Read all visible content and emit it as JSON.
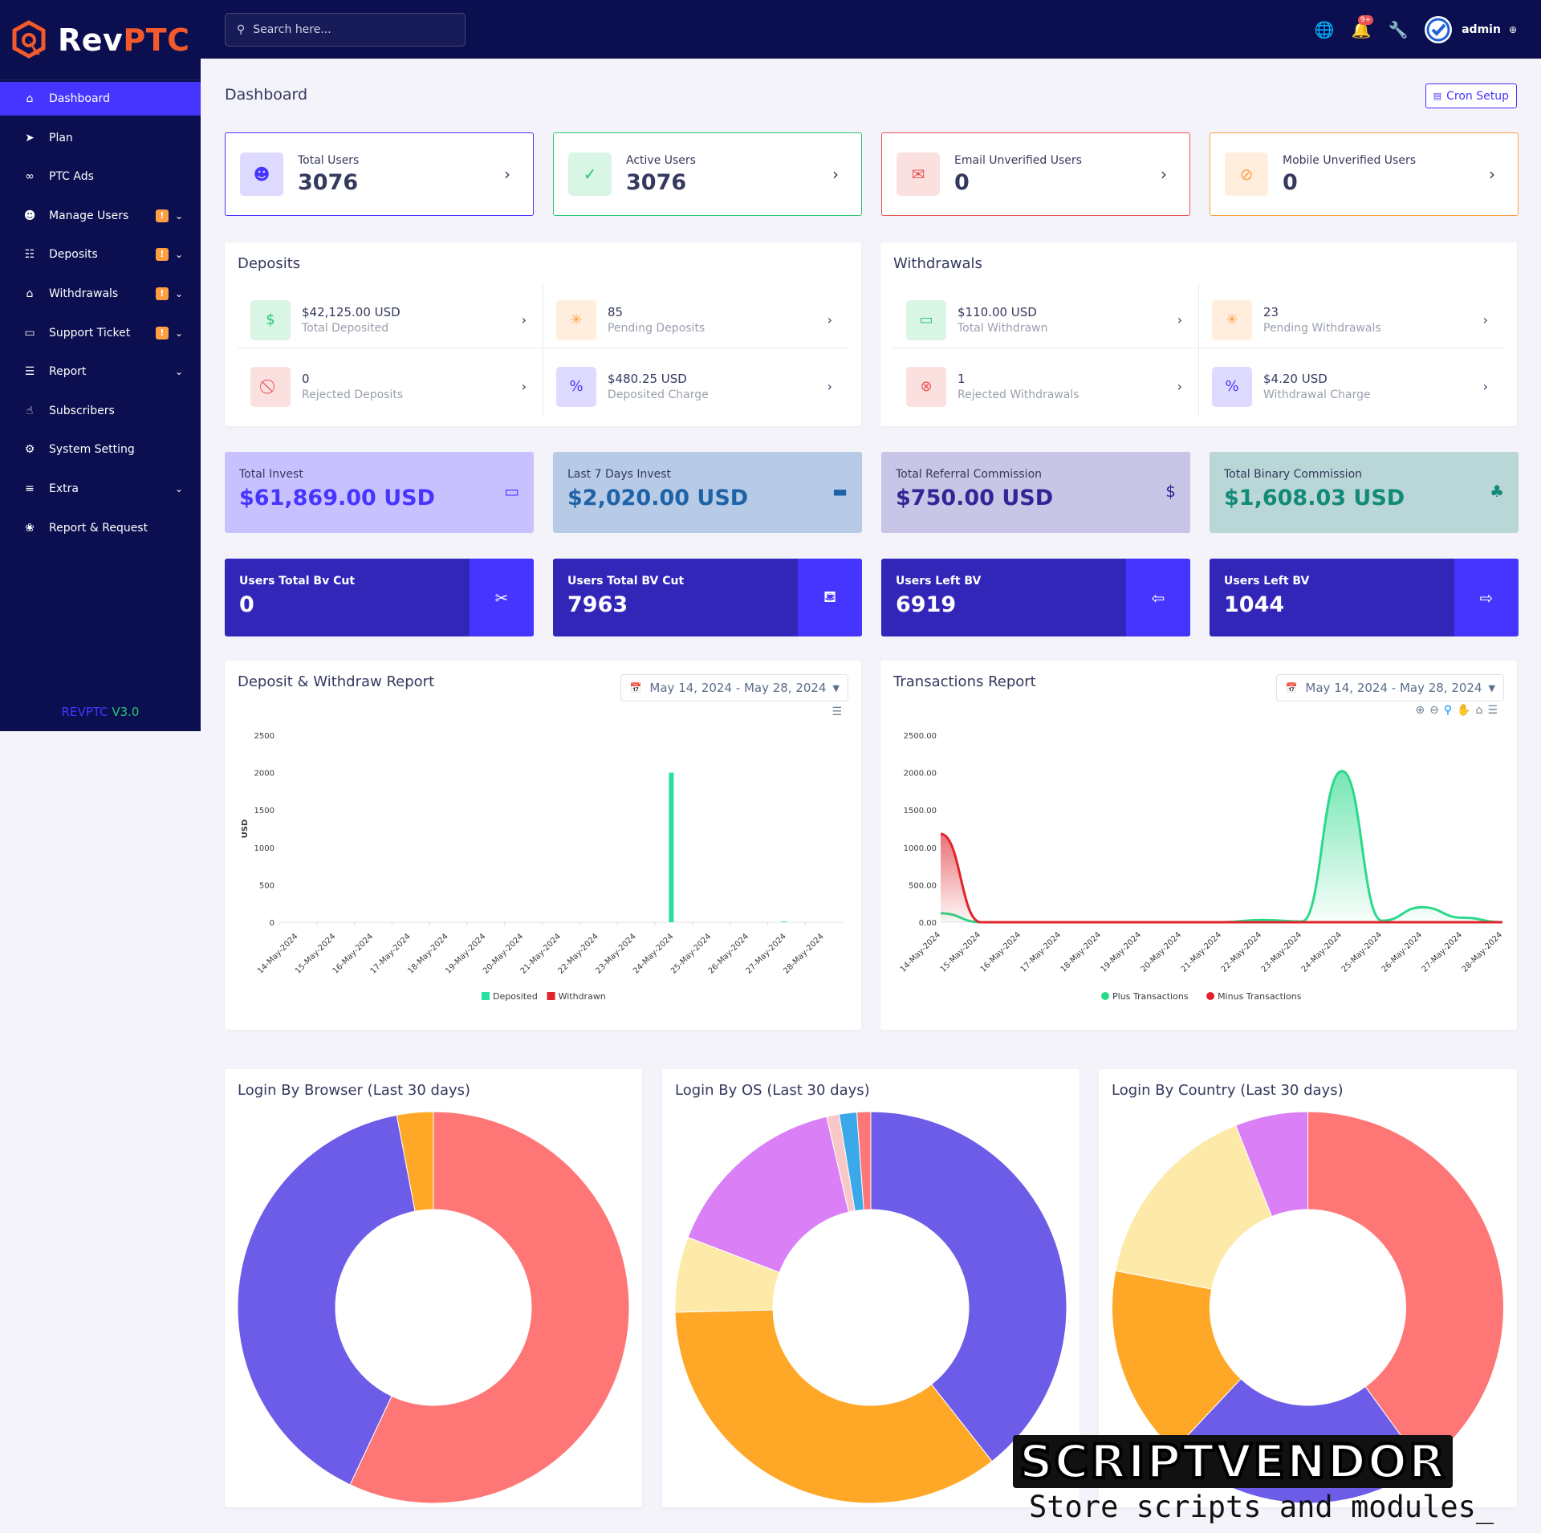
{
  "brand": {
    "rev": "Rev",
    "ptc": "PTC",
    "version_prefix": "REVPTC",
    "version_num": "V3.0"
  },
  "colors": {
    "primary": "#4634ff",
    "sidebar": "#0b0f4f",
    "success": "#28c76f",
    "danger": "#ea5455",
    "warning": "#ff9f43",
    "info": "#1e9ff2"
  },
  "sidebar": {
    "items": [
      {
        "label": "Dashboard",
        "icon": "home-icon",
        "active": true
      },
      {
        "label": "Plan",
        "icon": "send-icon"
      },
      {
        "label": "PTC Ads",
        "icon": "link-icon"
      },
      {
        "label": "Manage Users",
        "icon": "users-icon",
        "badge": "!",
        "dropdown": true
      },
      {
        "label": "Deposits",
        "icon": "file-money-icon",
        "badge": "!",
        "dropdown": true
      },
      {
        "label": "Withdrawals",
        "icon": "bank-icon",
        "badge": "!",
        "dropdown": true
      },
      {
        "label": "Support Ticket",
        "icon": "ticket-icon",
        "badge": "!",
        "dropdown": true
      },
      {
        "label": "Report",
        "icon": "list-icon",
        "dropdown": true
      },
      {
        "label": "Subscribers",
        "icon": "thumbs-up-icon"
      },
      {
        "label": "System Setting",
        "icon": "settings-icon"
      },
      {
        "label": "Extra",
        "icon": "server-icon",
        "dropdown": true
      },
      {
        "label": "Report & Request",
        "icon": "bug-icon"
      }
    ]
  },
  "topbar": {
    "search_placeholder": "Search here...",
    "notif_count": "9+",
    "admin": "admin"
  },
  "page": {
    "title": "Dashboard",
    "cron_label": "Cron Setup"
  },
  "widgets": [
    {
      "label": "Total Users",
      "value": "3076",
      "icon": "users-group-icon",
      "color": "#4634ff"
    },
    {
      "label": "Active Users",
      "value": "3076",
      "icon": "user-check-icon",
      "color": "#28c76f"
    },
    {
      "label": "Email Unverified Users",
      "value": "0",
      "icon": "envelope-icon",
      "color": "#ea5455"
    },
    {
      "label": "Mobile Unverified Users",
      "value": "0",
      "icon": "mobile-off-icon",
      "color": "#ff9f43"
    }
  ],
  "deposits": {
    "title": "Deposits",
    "items": [
      {
        "value": "$42,125.00 USD",
        "label": "Total Deposited",
        "icon": "hand-dollar-icon",
        "color": "#28c76f"
      },
      {
        "value": "85",
        "label": "Pending Deposits",
        "icon": "spinner-icon",
        "color": "#ff9f43"
      },
      {
        "value": "0",
        "label": "Rejected Deposits",
        "icon": "ban-icon",
        "color": "#ea5455"
      },
      {
        "value": "$480.25 USD",
        "label": "Deposited Charge",
        "icon": "percent-icon",
        "color": "#4634ff"
      }
    ]
  },
  "withdrawals": {
    "title": "Withdrawals",
    "items": [
      {
        "value": "$110.00 USD",
        "label": "Total Withdrawn",
        "icon": "card-icon",
        "color": "#28c76f"
      },
      {
        "value": "23",
        "label": "Pending Withdrawals",
        "icon": "spinner-icon",
        "color": "#ff9f43"
      },
      {
        "value": "1",
        "label": "Rejected Withdrawals",
        "icon": "times-circle-icon",
        "color": "#ea5455"
      },
      {
        "value": "$4.20 USD",
        "label": "Withdrawal Charge",
        "icon": "percent-icon",
        "color": "#4634ff"
      }
    ]
  },
  "stats": [
    {
      "label": "Total Invest",
      "value": "$61,869.00 USD",
      "icon": "credit-card-icon",
      "bg": "#c8c1ff",
      "fg": "#4634ff"
    },
    {
      "label": "Last 7 Days Invest",
      "value": "$2,020.00 USD",
      "icon": "card-filled-icon",
      "bg": "#b8cbe6",
      "fg": "#1e62a8"
    },
    {
      "label": "Total Referral Commission",
      "value": "$750.00 USD",
      "icon": "hand-coin-icon",
      "bg": "#c8c5e6",
      "fg": "#322696"
    },
    {
      "label": "Total Binary Commission",
      "value": "$1,608.03 USD",
      "icon": "tree-icon",
      "bg": "#b9d7d6",
      "fg": "#128a78"
    }
  ],
  "bv": [
    {
      "label": "Users Total Bv Cut",
      "value": "0",
      "icon": "scissors-icon"
    },
    {
      "label": "Users Total BV Cut",
      "value": "7963",
      "icon": "cart-icon"
    },
    {
      "label": "Users Left BV",
      "value": "6919",
      "icon": "arrow-left-circle-icon"
    },
    {
      "label": "Users Left BV",
      "value": "1044",
      "icon": "arrow-right-circle-icon"
    }
  ],
  "reports": {
    "deposit_title": "Deposit & Withdraw Report",
    "transactions_title": "Transactions Report",
    "date_range": "May 14, 2024 - May 28, 2024"
  },
  "donuts": {
    "browser_title": "Login By Browser (Last 30 days)",
    "os_title": "Login By OS (Last 30 days)",
    "country_title": "Login By Country (Last 30 days)"
  },
  "chart_data": [
    {
      "type": "bar",
      "title": "Deposit & Withdraw Report",
      "ylabel": "USD",
      "ylim": [
        0,
        2500
      ],
      "yticks": [
        "0",
        "500",
        "1000",
        "1500",
        "2000",
        "2500"
      ],
      "categories": [
        "14-May-2024",
        "15-May-2024",
        "16-May-2024",
        "17-May-2024",
        "18-May-2024",
        "19-May-2024",
        "20-May-2024",
        "21-May-2024",
        "22-May-2024",
        "23-May-2024",
        "24-May-2024",
        "25-May-2024",
        "26-May-2024",
        "27-May-2024",
        "28-May-2024"
      ],
      "series": [
        {
          "name": "Deposited",
          "color": "#28e0a0",
          "values": [
            0,
            0,
            0,
            0,
            0,
            0,
            0,
            0,
            0,
            0,
            2000,
            0,
            0,
            10,
            0
          ]
        },
        {
          "name": "Withdrawn",
          "color": "#e0242b",
          "values": [
            0,
            0,
            0,
            0,
            0,
            0,
            0,
            0,
            0,
            0,
            0,
            0,
            0,
            0,
            0
          ]
        }
      ],
      "legend": "bottom"
    },
    {
      "type": "area",
      "title": "Transactions Report",
      "ylim": [
        0,
        2500
      ],
      "yticks": [
        "0.00",
        "500.00",
        "1000.00",
        "1500.00",
        "2000.00",
        "2500.00"
      ],
      "categories": [
        "14-May-2024",
        "15-May-2024",
        "16-May-2024",
        "17-May-2024",
        "18-May-2024",
        "19-May-2024",
        "20-May-2024",
        "21-May-2024",
        "22-May-2024",
        "23-May-2024",
        "24-May-2024",
        "25-May-2024",
        "26-May-2024",
        "27-May-2024",
        "28-May-2024"
      ],
      "series": [
        {
          "name": "Plus Transactions",
          "color": "#2bd98b",
          "values": [
            120,
            0,
            0,
            0,
            0,
            0,
            0,
            0,
            30,
            10,
            2020,
            20,
            200,
            60,
            0
          ]
        },
        {
          "name": "Minus Transactions",
          "color": "#e0242b",
          "values": [
            1180,
            0,
            0,
            0,
            0,
            0,
            0,
            0,
            0,
            0,
            0,
            0,
            0,
            0,
            0
          ]
        }
      ],
      "legend": "bottom"
    },
    {
      "type": "pie",
      "title": "Login By Browser (Last 30 days)",
      "values": [
        57,
        40,
        3
      ],
      "colors": [
        "#ff7676",
        "#6c5ce7",
        "#ffa726"
      ]
    },
    {
      "type": "pie",
      "title": "Login By OS (Last 30 days)",
      "values": [
        38,
        34,
        6,
        15,
        1,
        1.4,
        1.1
      ],
      "colors": [
        "#6c5ce7",
        "#ffa726",
        "#fde9a8",
        "#da7ff5",
        "#f8c8c8",
        "#3ba8ea",
        "#ff7676"
      ]
    },
    {
      "type": "pie",
      "title": "Login By Country (Last 30 days)",
      "values": [
        40,
        22,
        16,
        16,
        6
      ],
      "colors": [
        "#ff7676",
        "#6c5ce7",
        "#ffa726",
        "#fde9a8",
        "#da7ff5"
      ]
    }
  ],
  "watermark": {
    "top": "SCRIPTVENDOR",
    "bottom": "Store scripts and modules_"
  }
}
